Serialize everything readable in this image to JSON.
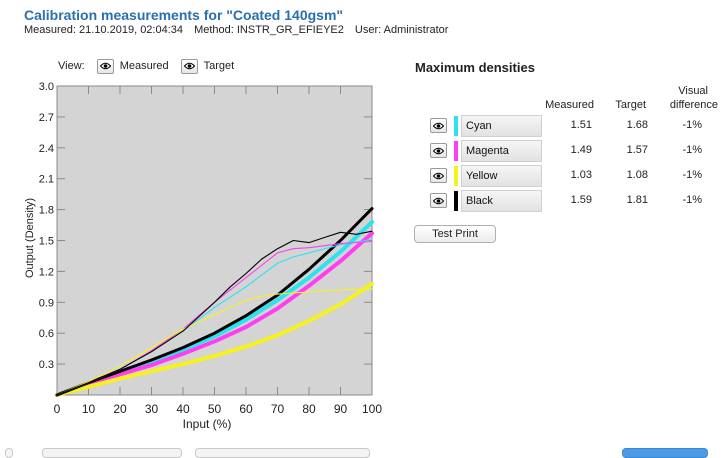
{
  "header": {
    "title": "Calibration measurements for \"Coated 140gsm\"",
    "measured": "Measured: 21.10.2019, 02:04:34",
    "method": "Method: INSTR_GR_EFIEYE2",
    "user": "User: Administrator"
  },
  "view": {
    "label": "View:",
    "measured_label": "Measured",
    "target_label": "Target"
  },
  "densities": {
    "title": "Maximum densities",
    "col_measured": "Measured",
    "col_target": "Target",
    "col_visual_1": "Visual",
    "col_visual_2": "difference",
    "rows": [
      {
        "name": "Cyan",
        "color": "#29e3ee",
        "measured": "1.51",
        "target": "1.68",
        "diff": "-1%"
      },
      {
        "name": "Magenta",
        "color": "#ff3ef2",
        "measured": "1.49",
        "target": "1.57",
        "diff": "-1%"
      },
      {
        "name": "Yellow",
        "color": "#f6f21e",
        "measured": "1.03",
        "target": "1.08",
        "diff": "-1%"
      },
      {
        "name": "Black",
        "color": "#000000",
        "measured": "1.59",
        "target": "1.81",
        "diff": "-1%"
      }
    ],
    "test_print_label": "Test Print"
  },
  "chart_data": {
    "type": "line",
    "xlabel": "Input (%)",
    "ylabel": "Output (Density)",
    "xlim": [
      0,
      100
    ],
    "ylim": [
      0,
      3.0
    ],
    "x_ticks": [
      "0",
      "10",
      "20",
      "30",
      "40",
      "50",
      "60",
      "70",
      "80",
      "90",
      "100"
    ],
    "y_ticks": [
      "0.3",
      "0.6",
      "0.9",
      "1.2",
      "1.5",
      "1.8",
      "2.1",
      "2.4",
      "2.7",
      "3.0"
    ],
    "grid": false,
    "legend": "none",
    "series": [
      {
        "color": "#29e3ee",
        "kind": "target",
        "x": [
          0,
          10,
          20,
          30,
          40,
          50,
          60,
          70,
          80,
          90,
          100
        ],
        "y": [
          0,
          0.11,
          0.22,
          0.32,
          0.44,
          0.57,
          0.73,
          0.92,
          1.14,
          1.39,
          1.68
        ]
      },
      {
        "color": "#ff3ef2",
        "kind": "target",
        "x": [
          0,
          10,
          20,
          30,
          40,
          50,
          60,
          70,
          80,
          90,
          100
        ],
        "y": [
          0,
          0.1,
          0.2,
          0.29,
          0.4,
          0.52,
          0.66,
          0.84,
          1.06,
          1.3,
          1.57
        ]
      },
      {
        "color": "#f6f21e",
        "kind": "target",
        "x": [
          0,
          10,
          20,
          30,
          40,
          50,
          60,
          70,
          80,
          90,
          100
        ],
        "y": [
          0,
          0.08,
          0.16,
          0.23,
          0.3,
          0.38,
          0.47,
          0.58,
          0.72,
          0.88,
          1.08
        ]
      },
      {
        "color": "#000000",
        "kind": "target",
        "x": [
          0,
          10,
          20,
          30,
          40,
          50,
          60,
          70,
          80,
          90,
          100
        ],
        "y": [
          0,
          0.12,
          0.23,
          0.34,
          0.46,
          0.6,
          0.77,
          0.97,
          1.22,
          1.5,
          1.81
        ]
      },
      {
        "color": "#29e3ee",
        "kind": "measured",
        "x": [
          0,
          10,
          20,
          30,
          40,
          50,
          60,
          70,
          75,
          80,
          85,
          90,
          100
        ],
        "y": [
          0,
          0.12,
          0.25,
          0.42,
          0.62,
          0.85,
          1.05,
          1.28,
          1.34,
          1.38,
          1.42,
          1.46,
          1.51
        ]
      },
      {
        "color": "#ff3ef2",
        "kind": "measured",
        "x": [
          0,
          10,
          20,
          30,
          40,
          50,
          60,
          70,
          75,
          80,
          85,
          90,
          100
        ],
        "y": [
          0,
          0.12,
          0.25,
          0.43,
          0.64,
          0.9,
          1.14,
          1.38,
          1.42,
          1.43,
          1.45,
          1.47,
          1.49
        ]
      },
      {
        "color": "#f6f21e",
        "kind": "measured",
        "x": [
          0,
          10,
          20,
          30,
          40,
          50,
          60,
          65,
          70,
          80,
          90,
          100
        ],
        "y": [
          0,
          0.13,
          0.28,
          0.46,
          0.64,
          0.78,
          0.92,
          0.96,
          0.98,
          1.0,
          1.02,
          1.03
        ]
      },
      {
        "color": "#000000",
        "kind": "measured",
        "x": [
          0,
          10,
          20,
          30,
          40,
          50,
          55,
          60,
          65,
          70,
          75,
          80,
          85,
          90,
          95,
          100
        ],
        "y": [
          0,
          0.12,
          0.25,
          0.42,
          0.62,
          0.9,
          1.05,
          1.18,
          1.32,
          1.42,
          1.5,
          1.48,
          1.53,
          1.58,
          1.56,
          1.59
        ]
      }
    ]
  }
}
